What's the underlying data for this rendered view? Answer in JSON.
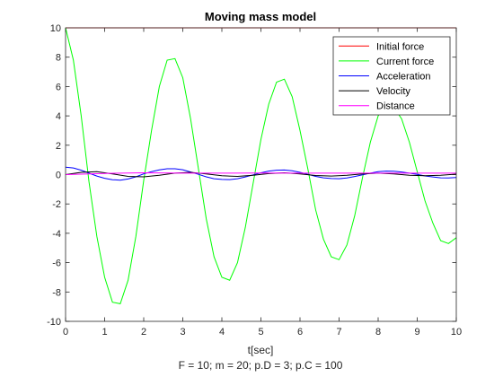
{
  "chart_data": {
    "type": "line",
    "title": "Moving mass model",
    "xlabel": "t[sec]",
    "xlabel2": "F = 10; m = 20; p.D = 3; p.C = 100",
    "ylabel": "",
    "xlim": [
      0,
      10
    ],
    "ylim": [
      -10,
      10
    ],
    "xticks": [
      0,
      1,
      2,
      3,
      4,
      5,
      6,
      7,
      8,
      9,
      10
    ],
    "yticks": [
      -10,
      -8,
      -6,
      -4,
      -2,
      0,
      2,
      4,
      6,
      8,
      10
    ],
    "grid": false,
    "legend": "top-right",
    "series": [
      {
        "name": "Initial force",
        "color": "#ff0000",
        "x": [
          0,
          10
        ],
        "values": [
          10,
          10
        ]
      },
      {
        "name": "Current force",
        "color": "#00ff00",
        "x": [
          0,
          0.2,
          0.4,
          0.6,
          0.8,
          1.0,
          1.2,
          1.4,
          1.6,
          1.8,
          2.0,
          2.2,
          2.4,
          2.6,
          2.8,
          3.0,
          3.2,
          3.4,
          3.6,
          3.8,
          4.0,
          4.2,
          4.4,
          4.6,
          4.8,
          5.0,
          5.2,
          5.4,
          5.6,
          5.8,
          6.0,
          6.2,
          6.4,
          6.6,
          6.8,
          7.0,
          7.2,
          7.4,
          7.6,
          7.8,
          8.0,
          8.2,
          8.4,
          8.6,
          8.8,
          9.0,
          9.2,
          9.4,
          9.6,
          9.8,
          10.0
        ],
        "values": [
          10,
          7.8,
          4.0,
          -0.5,
          -4.2,
          -7.0,
          -8.7,
          -8.8,
          -7.2,
          -4.2,
          -0.4,
          3.0,
          6.0,
          7.8,
          7.9,
          6.6,
          3.8,
          0.4,
          -3.0,
          -5.6,
          -7.0,
          -7.2,
          -6.0,
          -3.6,
          -0.6,
          2.4,
          4.8,
          6.3,
          6.5,
          5.3,
          3.0,
          0.4,
          -2.4,
          -4.4,
          -5.6,
          -5.8,
          -4.8,
          -2.8,
          -0.2,
          2.2,
          4.0,
          4.8,
          4.6,
          3.8,
          2.2,
          0.2,
          -1.8,
          -3.3,
          -4.5,
          -4.7,
          -4.3
        ]
      },
      {
        "name": "Acceleration",
        "color": "#0000ff",
        "x": [
          0,
          0.2,
          0.4,
          0.6,
          0.8,
          1.0,
          1.2,
          1.4,
          1.6,
          1.8,
          2.0,
          2.2,
          2.4,
          2.6,
          2.8,
          3.0,
          3.2,
          3.4,
          3.6,
          3.8,
          4.0,
          4.2,
          4.4,
          4.6,
          4.8,
          5.0,
          5.2,
          5.4,
          5.6,
          5.8,
          6.0,
          6.2,
          6.4,
          6.6,
          6.8,
          7.0,
          7.2,
          7.4,
          7.6,
          7.8,
          8.0,
          8.2,
          8.4,
          8.6,
          8.8,
          9.0,
          9.2,
          9.4,
          9.6,
          9.8,
          10.0
        ],
        "values": [
          0.5,
          0.45,
          0.3,
          0.1,
          -0.1,
          -0.25,
          -0.35,
          -0.38,
          -0.3,
          -0.15,
          0.05,
          0.2,
          0.32,
          0.4,
          0.4,
          0.33,
          0.18,
          0.02,
          -0.15,
          -0.28,
          -0.33,
          -0.34,
          -0.28,
          -0.16,
          -0.02,
          0.12,
          0.24,
          0.3,
          0.31,
          0.26,
          0.15,
          0.02,
          -0.12,
          -0.22,
          -0.27,
          -0.28,
          -0.23,
          -0.13,
          -0.01,
          0.1,
          0.2,
          0.24,
          0.23,
          0.18,
          0.1,
          0.01,
          -0.09,
          -0.16,
          -0.22,
          -0.23,
          -0.2
        ]
      },
      {
        "name": "Velocity",
        "color": "#000000",
        "x": [
          0,
          0.4,
          0.8,
          1.2,
          1.6,
          2.0,
          2.4,
          2.8,
          3.2,
          3.6,
          4.0,
          4.4,
          4.8,
          5.2,
          5.6,
          6.0,
          6.4,
          6.8,
          7.2,
          7.6,
          8.0,
          8.4,
          8.8,
          9.2,
          9.6,
          10.0
        ],
        "values": [
          0.0,
          0.15,
          0.2,
          0.05,
          -0.12,
          -0.15,
          -0.05,
          0.1,
          0.15,
          0.05,
          -0.08,
          -0.12,
          -0.05,
          0.07,
          0.12,
          0.05,
          -0.06,
          -0.1,
          -0.05,
          0.05,
          0.1,
          0.05,
          -0.04,
          -0.08,
          -0.04,
          0.03
        ]
      },
      {
        "name": "Distance",
        "color": "#ff00ff",
        "x": [
          0,
          1,
          2,
          3,
          4,
          5,
          6,
          7,
          8,
          9,
          10
        ],
        "values": [
          0.0,
          0.08,
          0.12,
          0.1,
          0.1,
          0.11,
          0.1,
          0.1,
          0.1,
          0.1,
          0.1
        ]
      }
    ]
  }
}
